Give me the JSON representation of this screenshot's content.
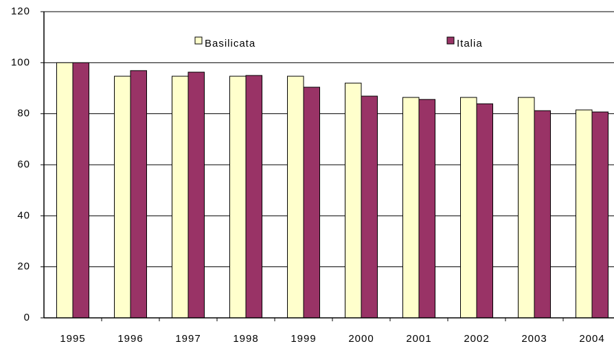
{
  "chart_data": {
    "type": "bar",
    "categories": [
      "1995",
      "1996",
      "1997",
      "1998",
      "1999",
      "2000",
      "2001",
      "2002",
      "2003",
      "2004"
    ],
    "series": [
      {
        "name": "Basilicata",
        "color": "#ffffcc",
        "values": [
          100,
          94.7,
          94.7,
          94.7,
          94.7,
          92.0,
          86.4,
          86.4,
          86.4,
          81.5
        ]
      },
      {
        "name": "Italia",
        "color": "#993366",
        "values": [
          100,
          96.9,
          96.3,
          95.0,
          90.4,
          86.9,
          85.6,
          83.9,
          81.2,
          80.7
        ]
      }
    ],
    "ylim": [
      0,
      120
    ],
    "yticks": [
      0,
      20,
      40,
      60,
      80,
      100,
      120
    ],
    "grid": true
  }
}
